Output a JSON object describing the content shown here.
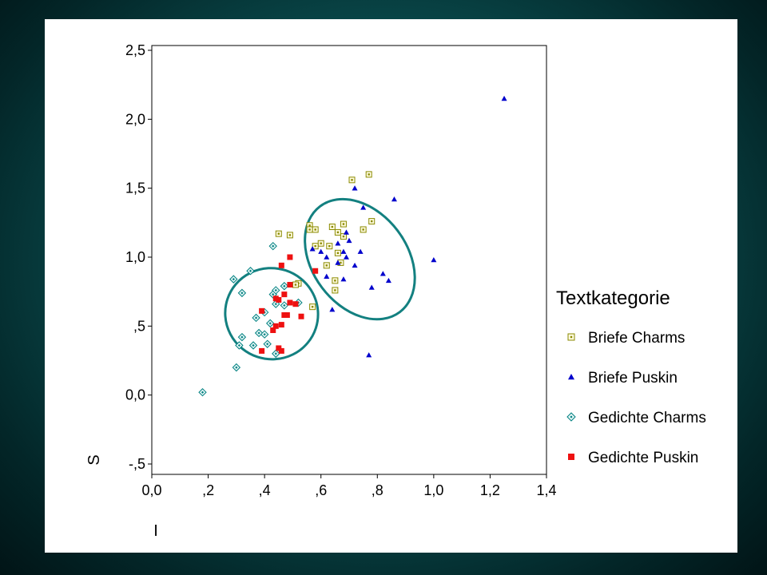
{
  "chart_data": {
    "type": "scatter",
    "xlabel": "I",
    "ylabel": "S",
    "xlim": [
      0.0,
      1.4
    ],
    "ylim": [
      -0.5,
      2.5
    ],
    "x_ticks": [
      "0,0",
      ",2",
      ",4",
      ",6",
      ",8",
      "1,0",
      "1,2",
      "1,4"
    ],
    "y_ticks": [
      "-,5",
      "0,0",
      ",5",
      "1,0",
      "1,5",
      "2,0",
      "2,5"
    ],
    "legend_title": "Textkategorie",
    "legend_position": "right",
    "series": [
      {
        "name": "Briefe Charms",
        "marker": "boxed-square",
        "color": "#8a8a00",
        "points": [
          [
            0.45,
            1.17
          ],
          [
            0.49,
            1.16
          ],
          [
            0.56,
            1.23
          ],
          [
            0.56,
            1.2
          ],
          [
            0.58,
            1.2
          ],
          [
            0.6,
            1.1
          ],
          [
            0.58,
            1.08
          ],
          [
            0.63,
            1.08
          ],
          [
            0.64,
            1.22
          ],
          [
            0.66,
            1.18
          ],
          [
            0.68,
            1.24
          ],
          [
            0.68,
            1.15
          ],
          [
            0.66,
            1.03
          ],
          [
            0.67,
            0.96
          ],
          [
            0.62,
            0.94
          ],
          [
            0.65,
            0.83
          ],
          [
            0.65,
            0.76
          ],
          [
            0.57,
            0.64
          ],
          [
            0.52,
            0.81
          ],
          [
            0.51,
            0.8
          ],
          [
            0.71,
            1.56
          ],
          [
            0.77,
            1.6
          ],
          [
            0.78,
            1.26
          ],
          [
            0.75,
            1.2
          ]
        ]
      },
      {
        "name": "Briefe Puskin",
        "marker": "triangle",
        "color": "#0000cc",
        "points": [
          [
            1.25,
            2.15
          ],
          [
            0.72,
            1.5
          ],
          [
            0.75,
            1.36
          ],
          [
            0.86,
            1.42
          ],
          [
            0.69,
            1.18
          ],
          [
            0.66,
            1.1
          ],
          [
            0.7,
            1.12
          ],
          [
            0.68,
            1.04
          ],
          [
            0.74,
            1.04
          ],
          [
            0.6,
            1.04
          ],
          [
            0.62,
            1.0
          ],
          [
            0.69,
            1.0
          ],
          [
            0.66,
            0.96
          ],
          [
            0.72,
            0.94
          ],
          [
            0.62,
            0.86
          ],
          [
            0.68,
            0.84
          ],
          [
            0.82,
            0.88
          ],
          [
            0.84,
            0.83
          ],
          [
            0.78,
            0.78
          ],
          [
            1.0,
            0.98
          ],
          [
            0.57,
            1.06
          ],
          [
            0.64,
            0.62
          ],
          [
            0.77,
            0.29
          ]
        ]
      },
      {
        "name": "Gedichte Charms",
        "marker": "diamond",
        "color": "#008080",
        "points": [
          [
            0.18,
            0.02
          ],
          [
            0.3,
            0.2
          ],
          [
            0.31,
            0.36
          ],
          [
            0.32,
            0.42
          ],
          [
            0.36,
            0.36
          ],
          [
            0.38,
            0.45
          ],
          [
            0.4,
            0.44
          ],
          [
            0.41,
            0.37
          ],
          [
            0.42,
            0.52
          ],
          [
            0.44,
            0.3
          ],
          [
            0.29,
            0.84
          ],
          [
            0.32,
            0.74
          ],
          [
            0.35,
            0.9
          ],
          [
            0.37,
            0.56
          ],
          [
            0.4,
            0.6
          ],
          [
            0.43,
            0.73
          ],
          [
            0.44,
            0.76
          ],
          [
            0.44,
            0.66
          ],
          [
            0.47,
            0.79
          ],
          [
            0.47,
            0.65
          ],
          [
            0.52,
            0.67
          ],
          [
            0.43,
            1.08
          ]
        ]
      },
      {
        "name": "Gedichte Puskin",
        "marker": "filled-square",
        "color": "#ee1111",
        "points": [
          [
            0.39,
            0.61
          ],
          [
            0.39,
            0.32
          ],
          [
            0.43,
            0.47
          ],
          [
            0.44,
            0.5
          ],
          [
            0.45,
            0.34
          ],
          [
            0.46,
            0.32
          ],
          [
            0.46,
            0.51
          ],
          [
            0.47,
            0.58
          ],
          [
            0.48,
            0.58
          ],
          [
            0.44,
            0.7
          ],
          [
            0.45,
            0.69
          ],
          [
            0.47,
            0.73
          ],
          [
            0.49,
            0.67
          ],
          [
            0.49,
            0.8
          ],
          [
            0.51,
            0.66
          ],
          [
            0.53,
            0.57
          ],
          [
            0.49,
            1.0
          ],
          [
            0.46,
            0.94
          ],
          [
            0.58,
            0.9
          ]
        ]
      }
    ],
    "ellipses": [
      {
        "group": "Gedichte",
        "color": "#138080",
        "cx": 0.425,
        "cy": 0.59,
        "rx": 0.165,
        "ry": 0.33,
        "rotation_deg": 18
      },
      {
        "group": "Briefe",
        "color": "#138080",
        "cx": 0.738,
        "cy": 0.985,
        "rx": 0.168,
        "ry": 0.48,
        "rotation_deg": -37
      }
    ]
  }
}
